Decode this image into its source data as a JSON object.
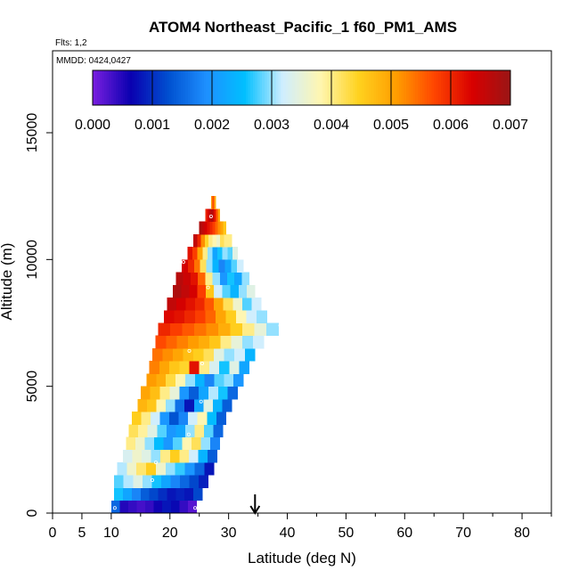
{
  "chart_data": {
    "type": "heatmap",
    "title": "ATOM4 Northeast_Pacific_1 f60_PM1_AMS",
    "flights_label": "Flts: 1,2",
    "mmdd_label": "MMDD: 0424,0427",
    "xlabel": "Latitude (deg N)",
    "ylabel": "Altitude (m)",
    "xlim": [
      0,
      85
    ],
    "ylim": [
      0,
      17500
    ],
    "x_ticks": [
      0,
      5,
      10,
      20,
      30,
      40,
      50,
      60,
      70,
      80
    ],
    "x_minor_ticks": [
      15,
      25,
      35,
      45,
      55,
      65,
      75,
      85
    ],
    "y_ticks": [
      0,
      5000,
      10000,
      15000
    ],
    "grid": false,
    "marker_latitude": 34.5,
    "colorbar": {
      "min": 0.0,
      "max": 0.007,
      "ticks": [
        "0.000",
        "0.001",
        "0.002",
        "0.003",
        "0.004",
        "0.005",
        "0.006",
        "0.007"
      ],
      "colors": [
        "#7a1fe0",
        "#0a00b0",
        "#0050d0",
        "#1e90ff",
        "#00bfff",
        "#cfeeff",
        "#fff6b0",
        "#ffd21f",
        "#ff9d00",
        "#ff4500",
        "#d80000",
        "#9a1515"
      ]
    },
    "bands": [
      {
        "alt": 250,
        "lat_start": 10.0,
        "lat_end": 24.5,
        "values": [
          0.0015,
          0.0005,
          0.0004,
          0.0003,
          0.0004,
          0.0006,
          0.0008,
          0.0007,
          0.0004,
          0.0002
        ]
      },
      {
        "alt": 750,
        "lat_start": 10.5,
        "lat_end": 25.5,
        "values": [
          0.0026,
          0.0022,
          0.0018,
          0.0014,
          0.0012,
          0.001,
          0.0008,
          0.0009,
          0.0008,
          0.0012
        ]
      },
      {
        "alt": 1250,
        "lat_start": 10.5,
        "lat_end": 26.5,
        "values": [
          0.0028,
          0.0031,
          0.0034,
          0.003,
          0.0026,
          0.0022,
          0.0018,
          0.0015,
          0.0012,
          0.0009
        ]
      },
      {
        "alt": 1750,
        "lat_start": 11.0,
        "lat_end": 27.5,
        "values": [
          0.0031,
          0.0036,
          0.0041,
          0.0045,
          0.0036,
          0.003,
          0.0027,
          0.002,
          0.0015,
          0.0008
        ]
      },
      {
        "alt": 2250,
        "lat_start": 12.0,
        "lat_end": 28.0,
        "values": [
          0.0033,
          0.0036,
          0.0034,
          0.003,
          0.004,
          0.0045,
          0.004,
          0.0032,
          0.0024,
          0.0014
        ]
      },
      {
        "alt": 2750,
        "lat_start": 12.5,
        "lat_end": 28.5,
        "values": [
          0.004,
          0.0036,
          0.003,
          0.0025,
          0.002,
          0.0028,
          0.0038,
          0.0042,
          0.003,
          0.0018
        ]
      },
      {
        "alt": 3250,
        "lat_start": 13.0,
        "lat_end": 29.0,
        "values": [
          0.0042,
          0.0039,
          0.0034,
          0.0028,
          0.002,
          0.0022,
          0.003,
          0.004,
          0.0028,
          0.0015
        ]
      },
      {
        "alt": 3750,
        "lat_start": 13.5,
        "lat_end": 29.5,
        "values": [
          0.0045,
          0.004,
          0.0032,
          0.002,
          0.0013,
          0.0018,
          0.0032,
          0.0038,
          0.0025,
          0.0014
        ]
      },
      {
        "alt": 4250,
        "lat_start": 14.5,
        "lat_end": 30.5,
        "values": [
          0.0048,
          0.0046,
          0.0038,
          0.003,
          0.0016,
          0.0008,
          0.0022,
          0.0034,
          0.0024,
          0.0014
        ]
      },
      {
        "alt": 4750,
        "lat_start": 15.0,
        "lat_end": 31.5,
        "values": [
          0.005,
          0.0047,
          0.004,
          0.0035,
          0.002,
          0.0014,
          0.0022,
          0.0031,
          0.0026,
          0.0015
        ]
      },
      {
        "alt": 5250,
        "lat_start": 16.0,
        "lat_end": 32.5,
        "values": [
          0.0051,
          0.0049,
          0.0043,
          0.0038,
          0.003,
          0.0024,
          0.0018,
          0.0028,
          0.003,
          0.002
        ]
      },
      {
        "alt": 5750,
        "lat_start": 16.5,
        "lat_end": 33.5,
        "values": [
          0.0053,
          0.005,
          0.0046,
          0.0044,
          0.0062,
          0.004,
          0.0033,
          0.0026,
          0.0034,
          0.0022
        ]
      },
      {
        "alt": 6250,
        "lat_start": 17.0,
        "lat_end": 34.5,
        "values": [
          0.0054,
          0.0052,
          0.005,
          0.0047,
          0.0045,
          0.0042,
          0.0034,
          0.003,
          0.0032,
          0.0024
        ]
      },
      {
        "alt": 6750,
        "lat_start": 17.5,
        "lat_end": 36.0,
        "values": [
          0.0057,
          0.0055,
          0.0053,
          0.0051,
          0.0049,
          0.0046,
          0.004,
          0.0035,
          0.003,
          0.0032
        ]
      },
      {
        "alt": 7250,
        "lat_start": 18.0,
        "lat_end": 38.5,
        "values": [
          0.006,
          0.0058,
          0.0056,
          0.0054,
          0.0052,
          0.0049,
          0.0045,
          0.004,
          0.0035,
          0.003
        ]
      },
      {
        "alt": 7750,
        "lat_start": 19.0,
        "lat_end": 36.5,
        "values": [
          0.0063,
          0.0062,
          0.006,
          0.0058,
          0.0055,
          0.005,
          0.0045,
          0.0038,
          0.0032,
          0.003
        ]
      },
      {
        "alt": 8250,
        "lat_start": 19.5,
        "lat_end": 35.5,
        "values": [
          0.0066,
          0.0064,
          0.0062,
          0.006,
          0.0056,
          0.005,
          0.0042,
          0.0036,
          0.0028,
          0.0032
        ]
      },
      {
        "alt": 8750,
        "lat_start": 20.5,
        "lat_end": 34.5,
        "values": [
          0.0068,
          0.0066,
          0.0064,
          0.0058,
          0.0046,
          0.0032,
          0.0028,
          0.0024,
          0.003,
          0.0034
        ]
      },
      {
        "alt": 9250,
        "lat_start": 21.0,
        "lat_end": 33.5,
        "values": [
          0.0067,
          0.0065,
          0.0062,
          0.0055,
          0.004,
          0.003,
          0.002,
          0.0026,
          0.0022,
          0.003
        ]
      },
      {
        "alt": 9750,
        "lat_start": 22.0,
        "lat_end": 32.5,
        "values": [
          0.0064,
          0.006,
          0.0054,
          0.0042,
          0.003,
          0.0024,
          0.0018,
          0.0022,
          0.0028,
          0.0032
        ]
      },
      {
        "alt": 10250,
        "lat_start": 23.0,
        "lat_end": 31.5,
        "values": [
          0.0062,
          0.0058,
          0.005,
          0.004,
          0.003,
          0.0022,
          0.0026,
          0.003,
          0.0028,
          0.0034
        ]
      },
      {
        "alt": 10750,
        "lat_start": 24.0,
        "lat_end": 30.5,
        "values": [
          0.0066,
          0.006,
          0.0052,
          0.0044,
          0.004,
          0.0038,
          0.0036,
          0.0042,
          0.004,
          0.004
        ]
      },
      {
        "alt": 11250,
        "lat_start": 25.0,
        "lat_end": 29.5,
        "values": [
          0.0068,
          0.0066,
          0.0064,
          0.0062,
          0.006,
          0.0058,
          0.0055,
          0.0052,
          0.005,
          0.0046
        ]
      },
      {
        "alt": 11750,
        "lat_start": 26.0,
        "lat_end": 28.5,
        "values": [
          0.006,
          0.0062,
          0.0064,
          0.0066,
          0.0068,
          0.0066,
          0.0062,
          0.0058,
          0.0054,
          0.005
        ]
      },
      {
        "alt": 12250,
        "lat_start": 27.0,
        "lat_end": 27.8,
        "values": [
          0.005,
          0.0052,
          0.0054,
          0.0056,
          0.0058,
          0.0056,
          0.0054,
          0.0052,
          0.005,
          0.0048
        ]
      }
    ],
    "sample_points": [
      {
        "lat": 10.6,
        "alt": 200
      },
      {
        "lat": 24.3,
        "alt": 200
      },
      {
        "lat": 17.0,
        "alt": 1300
      },
      {
        "lat": 17.6,
        "alt": 2000
      },
      {
        "lat": 23.2,
        "alt": 3100
      },
      {
        "lat": 25.3,
        "alt": 4400
      },
      {
        "lat": 23.3,
        "alt": 6400
      },
      {
        "lat": 25.5,
        "alt": 5900
      },
      {
        "lat": 38.8,
        "alt": 7400
      },
      {
        "lat": 26.5,
        "alt": 8900
      },
      {
        "lat": 22.3,
        "alt": 9900
      },
      {
        "lat": 27.0,
        "alt": 11700
      }
    ]
  }
}
